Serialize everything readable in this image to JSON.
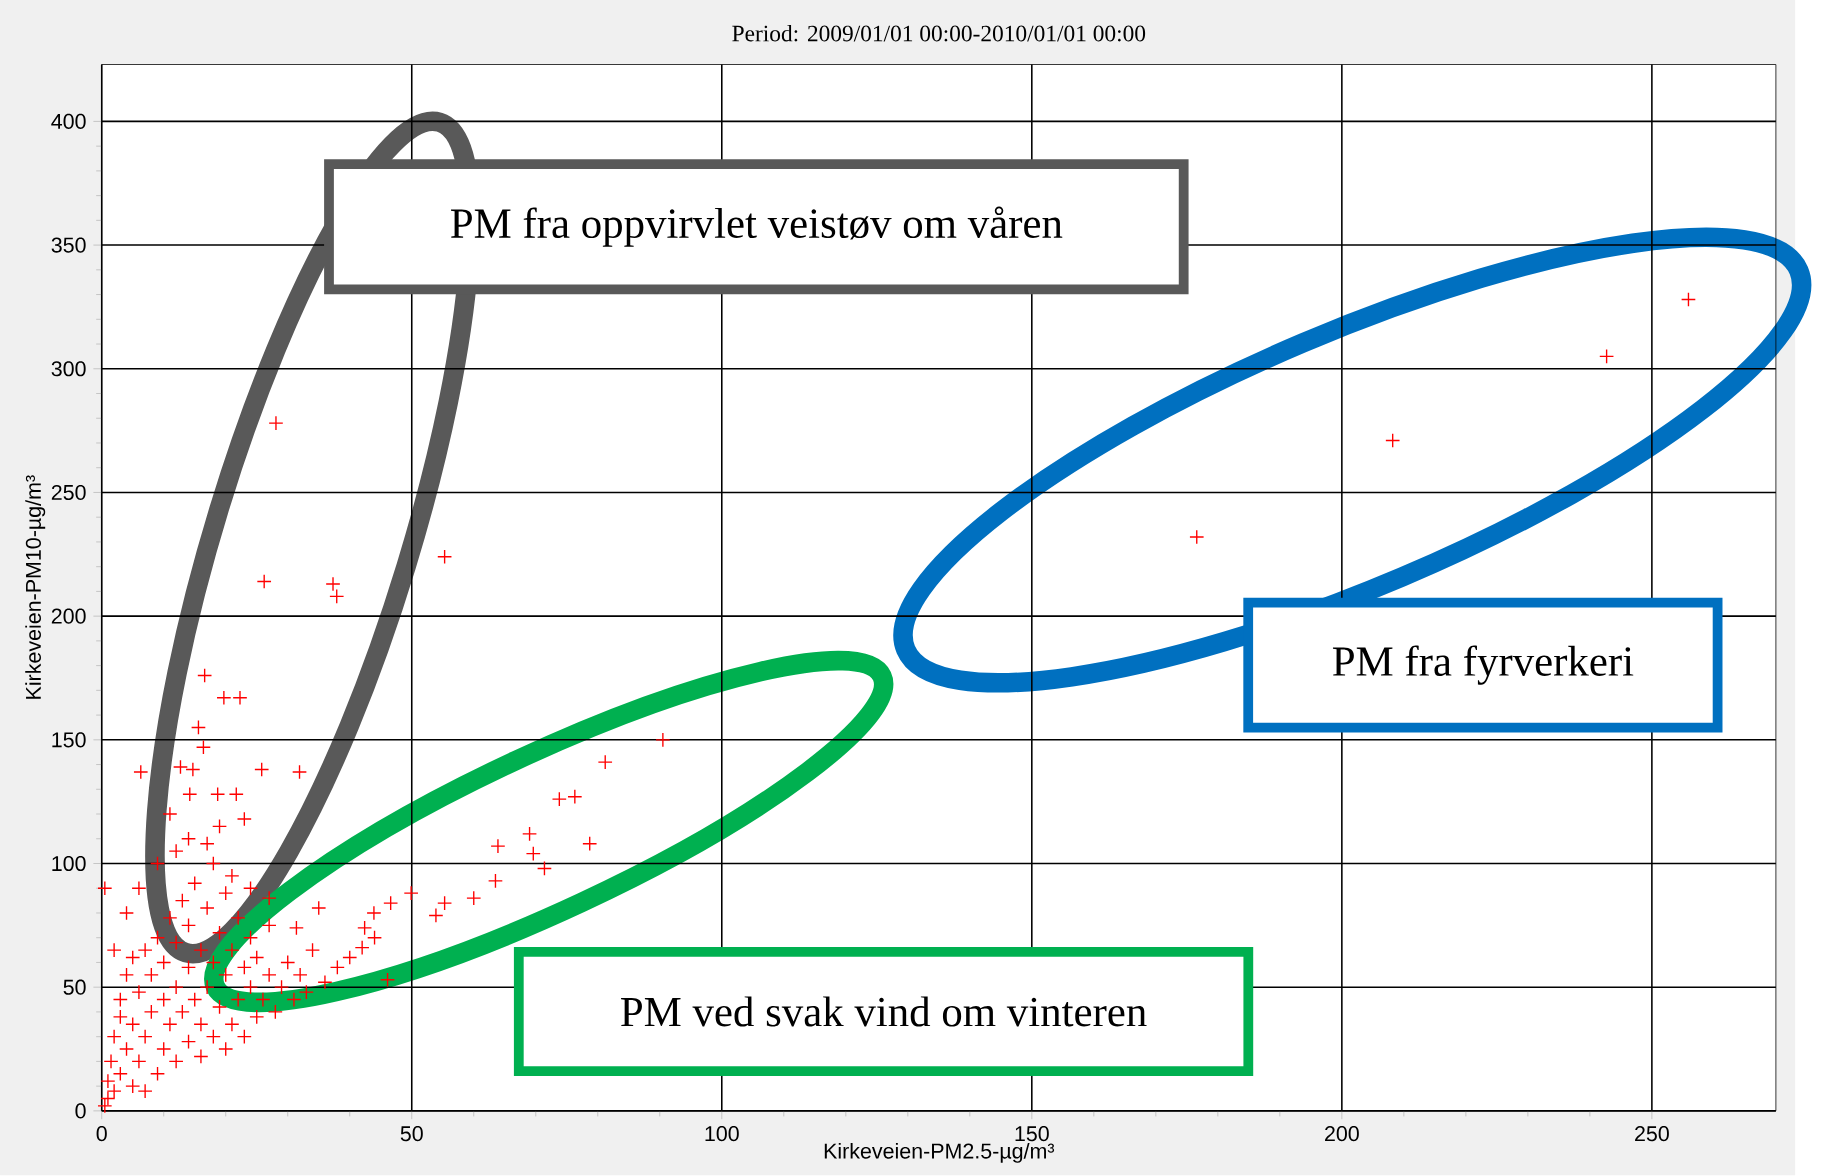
{
  "chart_data": {
    "type": "scatter",
    "title": "Period: 2009/01/01 00:00-2010/01/01 00:00",
    "xlabel": "Kirkeveien-PM2.5-µg/m³",
    "ylabel": "Kirkeveien-PM10-µg/m³",
    "x": [
      28.1,
      26.2,
      37.3,
      37.9,
      55.3,
      176.6,
      208.2,
      242.7,
      255.9,
      16.6,
      19.7,
      22.3,
      15.6,
      16.4,
      6.3,
      12.7,
      14.7,
      25.8,
      31.9,
      14.2,
      18.7,
      21.7,
      90.5,
      81.2,
      73.8,
      76.3,
      78.7,
      69,
      69.6,
      71.4,
      63.9,
      63.5,
      60,
      55.3,
      53.9,
      49.9,
      46.6,
      43.9,
      42.4,
      46.1,
      35,
      31.4,
      0.5,
      1,
      1,
      1.5,
      2,
      2,
      3,
      3,
      3,
      4,
      4,
      5,
      5,
      5,
      6,
      6,
      7,
      7,
      7,
      8,
      8,
      9,
      9,
      10,
      10,
      10,
      11,
      11,
      12,
      12,
      12,
      13,
      13,
      14,
      14,
      14,
      15,
      15,
      16,
      16,
      16,
      17,
      17,
      18,
      18,
      18,
      19,
      19,
      20,
      20,
      20,
      21,
      21,
      22,
      22,
      23,
      23,
      24,
      24,
      25,
      25,
      26,
      27,
      27,
      28,
      29,
      30,
      31,
      32,
      33,
      34,
      36,
      38,
      40,
      42,
      44,
      9,
      12,
      14,
      17,
      19,
      21,
      23,
      6,
      4,
      2,
      0.5,
      11,
      24,
      27
    ],
    "values": [
      278,
      214,
      213,
      208,
      224,
      232,
      271,
      305,
      328,
      176,
      167,
      167,
      155,
      147,
      137,
      139,
      138,
      138,
      137,
      128,
      128,
      128,
      150,
      141,
      126,
      127,
      108,
      112,
      104,
      98,
      107,
      93,
      86,
      84,
      79,
      88,
      84,
      80,
      74,
      53,
      82,
      74,
      2,
      5,
      12,
      20,
      30,
      8,
      15,
      38,
      45,
      25,
      55,
      10,
      35,
      62,
      20,
      48,
      30,
      65,
      8,
      40,
      55,
      15,
      70,
      25,
      45,
      60,
      35,
      78,
      20,
      50,
      68,
      40,
      85,
      28,
      58,
      75,
      45,
      92,
      22,
      35,
      65,
      50,
      82,
      30,
      60,
      100,
      42,
      72,
      25,
      55,
      88,
      35,
      65,
      45,
      78,
      30,
      58,
      50,
      70,
      38,
      62,
      45,
      55,
      75,
      40,
      50,
      60,
      45,
      55,
      48,
      65,
      52,
      58,
      62,
      66,
      70,
      100,
      105,
      110,
      108,
      115,
      95,
      118,
      90,
      80,
      65,
      90,
      120,
      90,
      86
    ],
    "color": "#ff0000",
    "marker": "cross",
    "xlim": [
      0,
      270
    ],
    "ylim": [
      0,
      423
    ],
    "xticks": [
      0,
      50,
      100,
      150,
      200,
      250
    ],
    "yticks": [
      0,
      50,
      100,
      150,
      200,
      250,
      300,
      350,
      400
    ],
    "grid": true,
    "annotations": [
      "PM fra oppvirvlet veistøv om våren",
      "PM fra fyrverkeri",
      "PM ved svak vind om vinteren"
    ]
  }
}
